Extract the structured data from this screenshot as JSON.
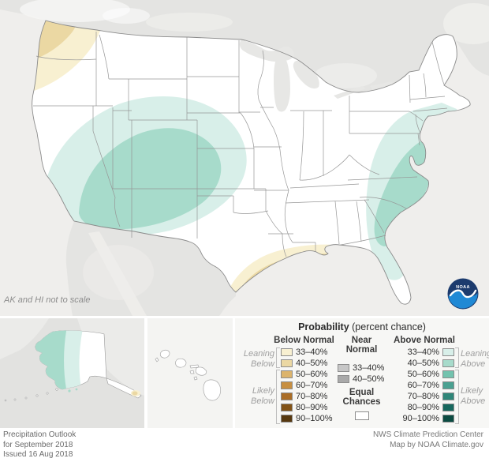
{
  "map": {
    "note": "AK and HI not to scale",
    "noaa": {
      "text": "NOAA",
      "navy": "#1c3b6e",
      "blue": "#2089d5"
    },
    "shading": [
      {
        "area": "pacific-northwest",
        "category": "below-normal",
        "levels": [
          "33–40%",
          "40–50%"
        ]
      },
      {
        "area": "southwest-four-corners",
        "category": "above-normal",
        "levels": [
          "33–40%",
          "40–50%"
        ]
      },
      {
        "area": "texas-louisiana-gulf-coast",
        "category": "below-normal",
        "levels": [
          "33–40%",
          "40–50%"
        ]
      },
      {
        "area": "mid-atlantic-to-florida-coast",
        "category": "above-normal",
        "levels": [
          "33–40%",
          "40–50%"
        ]
      },
      {
        "area": "western-alaska",
        "category": "above-normal",
        "levels": [
          "33–40%",
          "40–50%"
        ]
      },
      {
        "area": "alaska-panhandle",
        "category": "below-normal",
        "levels": [
          "33–40%",
          "40–50%"
        ]
      },
      {
        "area": "rest-of-conus-and-hawaii",
        "category": "equal-chances",
        "levels": []
      }
    ]
  },
  "palette": {
    "below": [
      "#f8f0d1",
      "#ebd8a3",
      "#dcb46c",
      "#c78f41",
      "#aa6d26",
      "#825317",
      "#56380f"
    ],
    "near": [
      "#c7c7c7",
      "#a9a9a9"
    ],
    "above": [
      "#d8efe9",
      "#a7dbcb",
      "#73c3ae",
      "#4aa191",
      "#2f8678",
      "#17685e",
      "#0b4b41"
    ],
    "equal": "#ffffff"
  },
  "legend": {
    "title": "Probability",
    "title_suffix": " (percent chance)",
    "ranges_full": [
      "33–40%",
      "40–50%",
      "50–60%",
      "60–70%",
      "70–80%",
      "80–90%",
      "90–100%"
    ],
    "ranges_near": [
      "33–40%",
      "40–50%"
    ],
    "below": {
      "header": "Below Normal",
      "groups": [
        {
          "l1": "Leaning",
          "l2": "Below"
        },
        {
          "l1": "Likely",
          "l2": "Below"
        }
      ]
    },
    "near": {
      "header_l1": "Near",
      "header_l2": "Normal",
      "equal_l1": "Equal",
      "equal_l2": "Chances"
    },
    "above": {
      "header": "Above Normal",
      "groups": [
        {
          "l1": "Leaning",
          "l2": "Above"
        },
        {
          "l1": "Likely",
          "l2": "Above"
        }
      ]
    }
  },
  "footer": {
    "left_lines": [
      "Precipitation Outlook",
      "for September 2018",
      "Issued 16 Aug 2018"
    ],
    "right_lines": [
      "NWS Climate Prediction Center",
      "Map by NOAA Climate.gov"
    ]
  }
}
